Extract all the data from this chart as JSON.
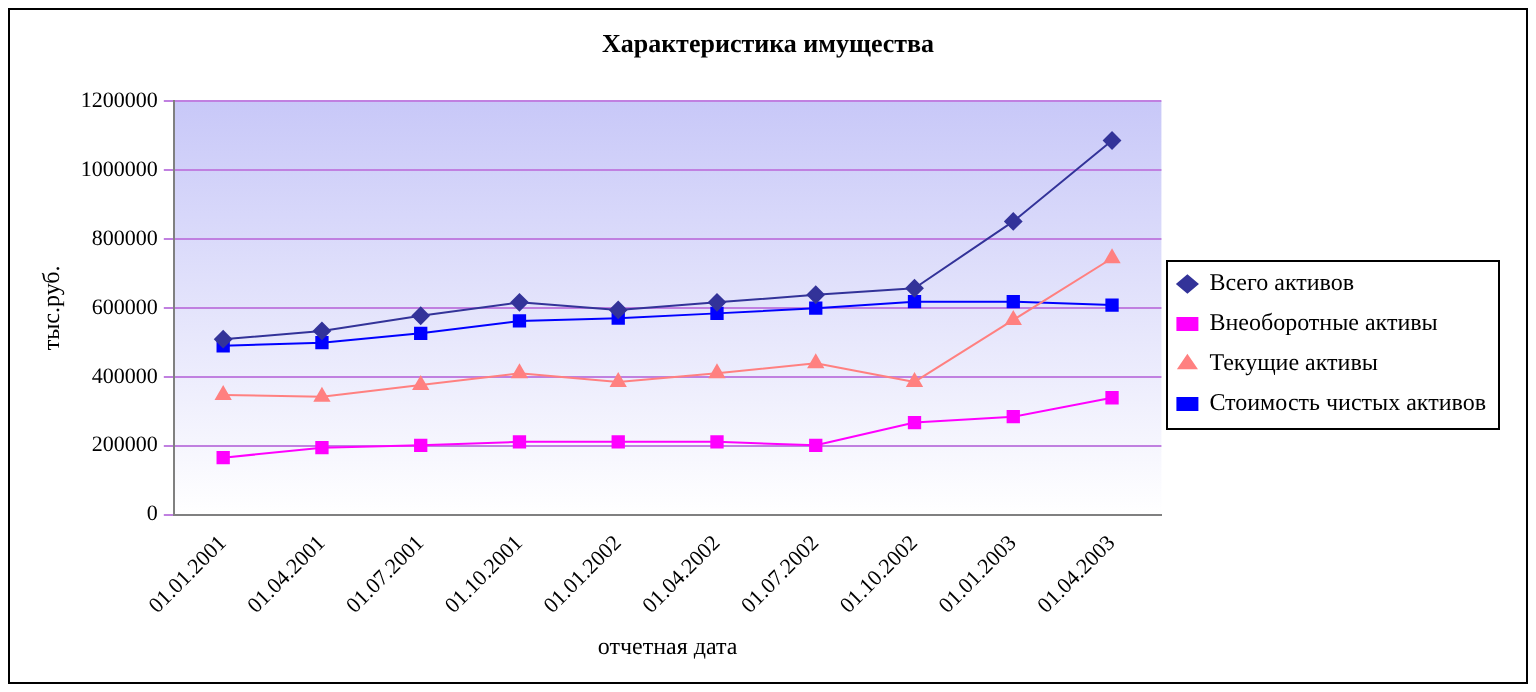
{
  "chart_data": {
    "type": "line",
    "title": "Характеристика имущества",
    "xlabel": "отчетная дата",
    "ylabel": "тыс.руб.",
    "categories": [
      "01.01.2001",
      "01.04.2001",
      "01.07.2001",
      "01.10.2001",
      "01.01.2002",
      "01.04.2002",
      "01.07.2002",
      "01.10.2002",
      "01.01.2003",
      "01.04.2003"
    ],
    "series": [
      {
        "name": "Всего активов",
        "color": "#333399",
        "marker": "diamond",
        "values": [
          509000,
          533000,
          577000,
          616000,
          594000,
          616000,
          638000,
          657000,
          851000,
          1086000
        ]
      },
      {
        "name": "Внеоборотные активы",
        "color": "#ff00ff",
        "marker": "square",
        "values": [
          165000,
          194000,
          201000,
          211000,
          211000,
          211000,
          201000,
          267000,
          284000,
          339000
        ]
      },
      {
        "name": "Текущие активы",
        "color": "#ff8080",
        "marker": "triangle",
        "values": [
          347000,
          342000,
          376000,
          410000,
          385000,
          410000,
          439000,
          385000,
          565000,
          744000
        ]
      },
      {
        "name": "Стоимость чистых активов",
        "color": "#0000ff",
        "marker": "square",
        "values": [
          490000,
          499000,
          526000,
          562000,
          570000,
          584000,
          599000,
          618000,
          618000,
          608000
        ]
      }
    ],
    "ylim": [
      0,
      1200000
    ],
    "yticks": [
      0,
      200000,
      400000,
      600000,
      800000,
      1000000,
      1200000
    ],
    "grid": "y",
    "legend": "right",
    "line_style": "solid"
  }
}
